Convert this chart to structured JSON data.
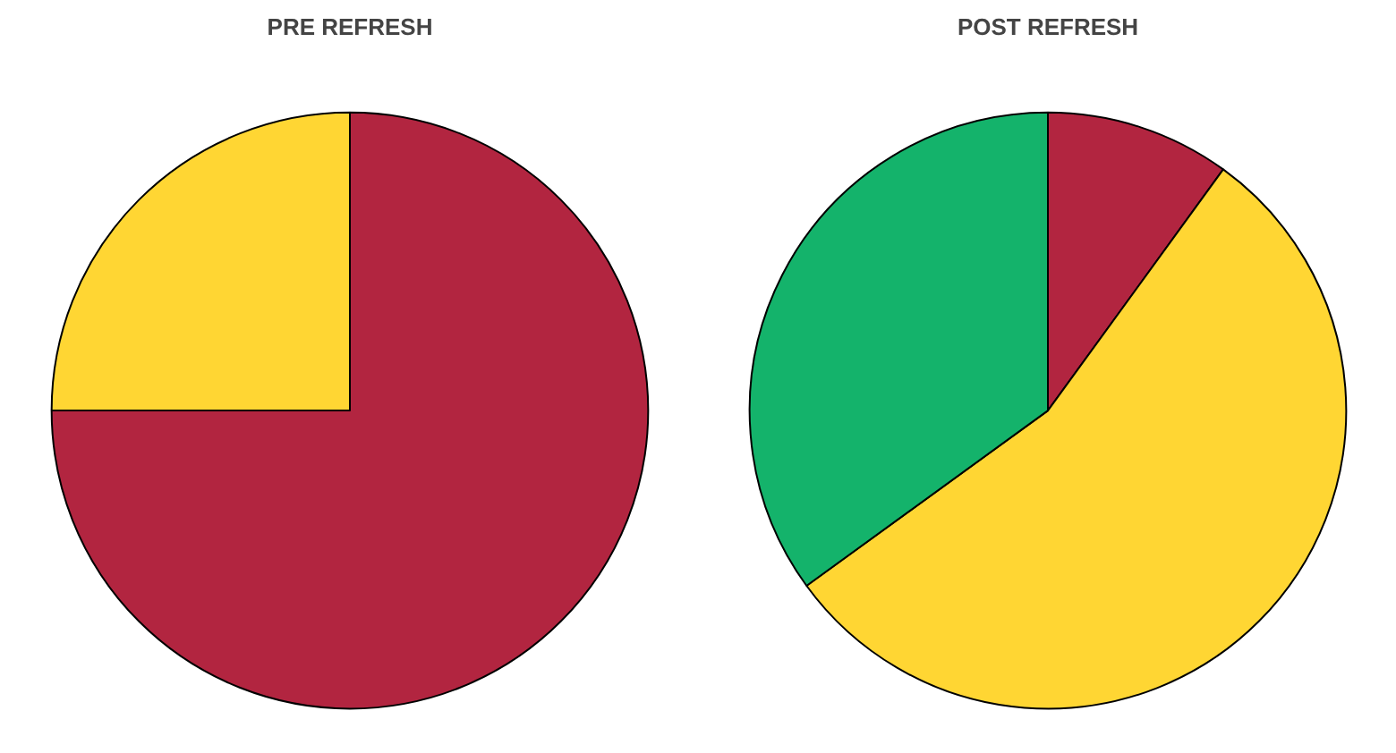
{
  "chart_data": [
    {
      "type": "pie",
      "title": "PRE REFRESH",
      "categories": [
        null,
        null
      ],
      "values": [
        75,
        25
      ],
      "colors": [
        "#b22540",
        "#ffd633"
      ]
    },
    {
      "type": "pie",
      "title": "POST REFRESH",
      "categories": [
        null,
        null,
        null
      ],
      "values": [
        10,
        55,
        35
      ],
      "colors": [
        "#b22540",
        "#ffd633",
        "#14b36b"
      ]
    }
  ]
}
